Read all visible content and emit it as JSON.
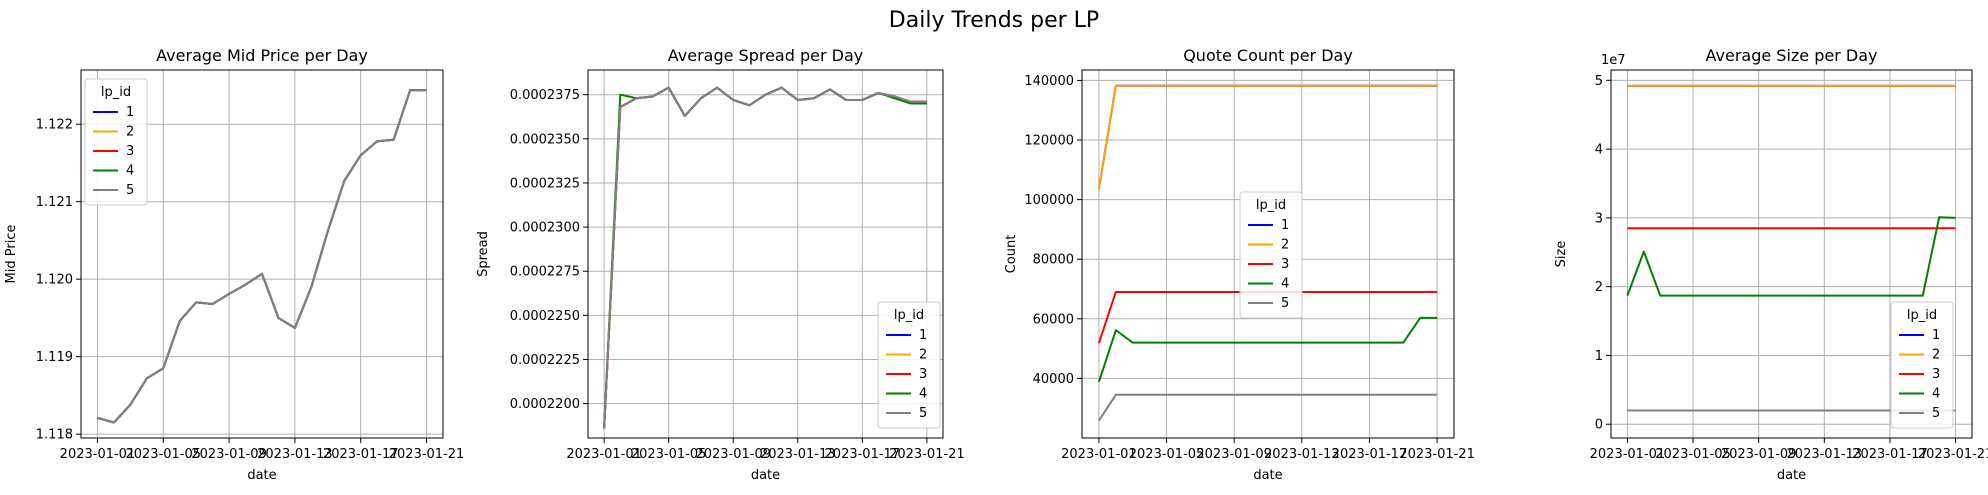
{
  "figure_title": "Daily Trends per LP",
  "series_colors": {
    "1": "#0000ff",
    "2": "#ffa500",
    "3": "#ff0000",
    "4": "#008000",
    "5": "#808080"
  },
  "chart_data": [
    {
      "type": "line",
      "title": "Average Mid Price per Day",
      "xlabel": "date",
      "ylabel": "Mid Price",
      "x": [
        "2023-01-01",
        "2023-01-02",
        "2023-01-03",
        "2023-01-04",
        "2023-01-05",
        "2023-01-06",
        "2023-01-07",
        "2023-01-08",
        "2023-01-09",
        "2023-01-10",
        "2023-01-11",
        "2023-01-12",
        "2023-01-13",
        "2023-01-14",
        "2023-01-15",
        "2023-01-16",
        "2023-01-17",
        "2023-01-18",
        "2023-01-19",
        "2023-01-20",
        "2023-01-21"
      ],
      "xlim": [
        "2022-12-31",
        "2023-01-22"
      ],
      "xticks": [
        "2023-01-01",
        "2023-01-05",
        "2023-01-09",
        "2023-01-13",
        "2023-01-17",
        "2023-01-21"
      ],
      "ylim": [
        1.11795,
        1.1227
      ],
      "yticks": [
        1.118,
        1.119,
        1.12,
        1.121,
        1.122
      ],
      "ytick_labels": [
        "1.118",
        "1.119",
        "1.120",
        "1.121",
        "1.122"
      ],
      "grid": true,
      "legend": {
        "title": "lp_id",
        "placement": "upper-left",
        "entries": [
          "1",
          "2",
          "3",
          "4",
          "5"
        ]
      },
      "series": [
        {
          "name": "1",
          "values": [
            1.11821,
            1.11815,
            1.11838,
            1.11872,
            1.11885,
            1.11946,
            1.1197,
            1.11968,
            1.11981,
            1.11993,
            1.12007,
            1.1195,
            1.11937,
            1.1199,
            1.12062,
            1.12127,
            1.1216,
            1.12178,
            1.1218,
            1.12244,
            1.12244
          ]
        },
        {
          "name": "2",
          "values": [
            1.11821,
            1.11815,
            1.11838,
            1.11872,
            1.11885,
            1.11946,
            1.1197,
            1.11968,
            1.11981,
            1.11993,
            1.12007,
            1.1195,
            1.11937,
            1.1199,
            1.12062,
            1.12127,
            1.1216,
            1.12178,
            1.1218,
            1.12244,
            1.12244
          ]
        },
        {
          "name": "3",
          "values": [
            1.11821,
            1.11815,
            1.11838,
            1.11872,
            1.11885,
            1.11946,
            1.1197,
            1.11968,
            1.11981,
            1.11993,
            1.12007,
            1.1195,
            1.11937,
            1.1199,
            1.12062,
            1.12127,
            1.1216,
            1.12178,
            1.1218,
            1.12244,
            1.12244
          ]
        },
        {
          "name": "4",
          "values": [
            1.11821,
            1.11815,
            1.11838,
            1.11872,
            1.11885,
            1.11946,
            1.1197,
            1.11968,
            1.11981,
            1.11993,
            1.12007,
            1.1195,
            1.11937,
            1.1199,
            1.12062,
            1.12127,
            1.1216,
            1.12178,
            1.1218,
            1.12244,
            1.12244
          ]
        },
        {
          "name": "5",
          "values": [
            1.11821,
            1.11815,
            1.11838,
            1.11872,
            1.11885,
            1.11946,
            1.1197,
            1.11968,
            1.11981,
            1.11993,
            1.12007,
            1.1195,
            1.11937,
            1.1199,
            1.12062,
            1.12127,
            1.1216,
            1.12178,
            1.1218,
            1.12244,
            1.12244
          ]
        }
      ]
    },
    {
      "type": "line",
      "title": "Average Spread per Day",
      "xlabel": "date",
      "ylabel": "Spread",
      "x": [
        "2023-01-01",
        "2023-01-02",
        "2023-01-03",
        "2023-01-04",
        "2023-01-05",
        "2023-01-06",
        "2023-01-07",
        "2023-01-08",
        "2023-01-09",
        "2023-01-10",
        "2023-01-11",
        "2023-01-12",
        "2023-01-13",
        "2023-01-14",
        "2023-01-15",
        "2023-01-16",
        "2023-01-17",
        "2023-01-18",
        "2023-01-19",
        "2023-01-20",
        "2023-01-21"
      ],
      "xlim": [
        "2022-12-31",
        "2023-01-22"
      ],
      "xticks": [
        "2023-01-01",
        "2023-01-05",
        "2023-01-09",
        "2023-01-13",
        "2023-01-17",
        "2023-01-21"
      ],
      "ylim": [
        0.00021805,
        0.0002389
      ],
      "yticks": [
        0.00022,
        0.0002225,
        0.000225,
        0.0002275,
        0.00023,
        0.0002325,
        0.000235,
        0.0002375
      ],
      "ytick_labels": [
        "0.0002200",
        "0.0002225",
        "0.0002250",
        "0.0002275",
        "0.0002300",
        "0.0002325",
        "0.0002350",
        "0.0002375"
      ],
      "grid": true,
      "legend": {
        "title": "lp_id",
        "placement": "lower-right",
        "entries": [
          "1",
          "2",
          "3",
          "4",
          "5"
        ]
      },
      "series": [
        {
          "name": "1",
          "values": [
            0.0002186,
            0.0002368,
            0.0002373,
            0.0002374,
            0.0002379,
            0.0002363,
            0.0002373,
            0.0002379,
            0.0002372,
            0.0002369,
            0.0002375,
            0.0002379,
            0.0002372,
            0.0002373,
            0.0002378,
            0.0002372,
            0.0002372,
            0.0002376,
            0.0002374,
            0.0002371,
            0.0002371
          ]
        },
        {
          "name": "2",
          "values": [
            0.0002186,
            0.0002368,
            0.0002373,
            0.0002374,
            0.0002379,
            0.0002363,
            0.0002373,
            0.0002379,
            0.0002372,
            0.0002369,
            0.0002375,
            0.0002379,
            0.0002372,
            0.0002373,
            0.0002378,
            0.0002372,
            0.0002372,
            0.0002376,
            0.0002374,
            0.0002371,
            0.0002371
          ]
        },
        {
          "name": "3",
          "values": [
            0.0002186,
            0.0002368,
            0.0002373,
            0.0002374,
            0.0002379,
            0.0002363,
            0.0002373,
            0.0002379,
            0.0002372,
            0.0002369,
            0.0002375,
            0.0002379,
            0.0002372,
            0.0002373,
            0.0002378,
            0.0002372,
            0.0002372,
            0.0002376,
            0.0002374,
            0.0002371,
            0.0002371
          ]
        },
        {
          "name": "4",
          "values": [
            0.0002186,
            0.0002375,
            0.0002373,
            0.0002374,
            0.0002379,
            0.0002363,
            0.0002373,
            0.0002379,
            0.0002372,
            0.0002369,
            0.0002375,
            0.0002379,
            0.0002372,
            0.0002373,
            0.0002378,
            0.0002372,
            0.0002372,
            0.0002376,
            0.0002373,
            0.000237,
            0.000237
          ]
        },
        {
          "name": "5",
          "values": [
            0.0002186,
            0.0002368,
            0.0002373,
            0.0002374,
            0.0002379,
            0.0002363,
            0.0002373,
            0.0002379,
            0.0002372,
            0.0002369,
            0.0002375,
            0.0002379,
            0.0002372,
            0.0002373,
            0.0002378,
            0.0002372,
            0.0002372,
            0.0002376,
            0.0002374,
            0.0002371,
            0.0002371
          ]
        }
      ]
    },
    {
      "type": "line",
      "title": "Quote Count per Day",
      "xlabel": "date",
      "ylabel": "Count",
      "x": [
        "2023-01-01",
        "2023-01-02",
        "2023-01-03",
        "2023-01-04",
        "2023-01-05",
        "2023-01-06",
        "2023-01-07",
        "2023-01-08",
        "2023-01-09",
        "2023-01-10",
        "2023-01-11",
        "2023-01-12",
        "2023-01-13",
        "2023-01-14",
        "2023-01-15",
        "2023-01-16",
        "2023-01-17",
        "2023-01-18",
        "2023-01-19",
        "2023-01-20",
        "2023-01-21"
      ],
      "xlim": [
        "2022-12-31",
        "2023-01-22"
      ],
      "xticks": [
        "2023-01-01",
        "2023-01-05",
        "2023-01-09",
        "2023-01-13",
        "2023-01-17",
        "2023-01-21"
      ],
      "ylim": [
        20000,
        143500
      ],
      "yticks": [
        40000,
        60000,
        80000,
        100000,
        120000,
        140000
      ],
      "ytick_labels": [
        "40000",
        "60000",
        "80000",
        "100000",
        "120000",
        "140000"
      ],
      "grid": true,
      "legend": {
        "title": "lp_id",
        "placement": "center",
        "entries": [
          "1",
          "2",
          "3",
          "4",
          "5"
        ]
      },
      "series": [
        {
          "name": "1",
          "values": [
            103500,
            138200,
            138200,
            138200,
            138200,
            138200,
            138200,
            138200,
            138200,
            138200,
            138200,
            138200,
            138200,
            138200,
            138200,
            138200,
            138200,
            138200,
            138200,
            138200,
            138200
          ]
        },
        {
          "name": "2",
          "values": [
            103500,
            138200,
            138200,
            138200,
            138200,
            138200,
            138200,
            138200,
            138200,
            138200,
            138200,
            138200,
            138200,
            138200,
            138200,
            138200,
            138200,
            138200,
            138200,
            138200,
            138200
          ]
        },
        {
          "name": "3",
          "values": [
            51800,
            69000,
            69000,
            69000,
            69000,
            69000,
            69000,
            69000,
            69000,
            69000,
            69000,
            69000,
            69000,
            69000,
            69000,
            69000,
            69000,
            69000,
            69000,
            69000,
            69000
          ]
        },
        {
          "name": "4",
          "values": [
            38800,
            56200,
            52000,
            52000,
            52000,
            52000,
            52000,
            52000,
            52000,
            52000,
            52000,
            52000,
            52000,
            52000,
            52000,
            52000,
            52000,
            52000,
            52000,
            60300,
            60300
          ]
        },
        {
          "name": "5",
          "values": [
            25800,
            34500,
            34500,
            34500,
            34500,
            34500,
            34500,
            34500,
            34500,
            34500,
            34500,
            34500,
            34500,
            34500,
            34500,
            34500,
            34500,
            34500,
            34500,
            34500,
            34500
          ]
        }
      ]
    },
    {
      "type": "line",
      "title": "Average Size per Day",
      "xlabel": "date",
      "ylabel": "Size",
      "y_offset_label": "1e7",
      "x": [
        "2023-01-01",
        "2023-01-02",
        "2023-01-03",
        "2023-01-04",
        "2023-01-05",
        "2023-01-06",
        "2023-01-07",
        "2023-01-08",
        "2023-01-09",
        "2023-01-10",
        "2023-01-11",
        "2023-01-12",
        "2023-01-13",
        "2023-01-14",
        "2023-01-15",
        "2023-01-16",
        "2023-01-17",
        "2023-01-18",
        "2023-01-19",
        "2023-01-20",
        "2023-01-21"
      ],
      "xlim": [
        "2022-12-31",
        "2023-01-22"
      ],
      "xticks": [
        "2023-01-01",
        "2023-01-05",
        "2023-01-09",
        "2023-01-13",
        "2023-01-17",
        "2023-01-21"
      ],
      "ylim": [
        -2000000,
        51500000
      ],
      "yticks": [
        0,
        10000000,
        20000000,
        30000000,
        40000000,
        50000000
      ],
      "ytick_labels": [
        "0",
        "1",
        "2",
        "3",
        "4",
        "5"
      ],
      "grid": true,
      "legend": {
        "title": "lp_id",
        "placement": "lower-right",
        "entries": [
          "1",
          "2",
          "3",
          "4",
          "5"
        ]
      },
      "series": [
        {
          "name": "1",
          "values": [
            49200000,
            49200000,
            49200000,
            49200000,
            49200000,
            49200000,
            49200000,
            49200000,
            49200000,
            49200000,
            49200000,
            49200000,
            49200000,
            49200000,
            49200000,
            49200000,
            49200000,
            49200000,
            49200000,
            49200000,
            49200000
          ]
        },
        {
          "name": "2",
          "values": [
            49200000,
            49200000,
            49200000,
            49200000,
            49200000,
            49200000,
            49200000,
            49200000,
            49200000,
            49200000,
            49200000,
            49200000,
            49200000,
            49200000,
            49200000,
            49200000,
            49200000,
            49200000,
            49200000,
            49200000,
            49200000
          ]
        },
        {
          "name": "3",
          "values": [
            28500000,
            28500000,
            28500000,
            28500000,
            28500000,
            28500000,
            28500000,
            28500000,
            28500000,
            28500000,
            28500000,
            28500000,
            28500000,
            28500000,
            28500000,
            28500000,
            28500000,
            28500000,
            28500000,
            28500000,
            28500000
          ]
        },
        {
          "name": "4",
          "values": [
            18700000,
            25100000,
            18700000,
            18700000,
            18700000,
            18700000,
            18700000,
            18700000,
            18700000,
            18700000,
            18700000,
            18700000,
            18700000,
            18700000,
            18700000,
            18700000,
            18700000,
            18700000,
            18700000,
            30100000,
            30000000
          ]
        },
        {
          "name": "5",
          "values": [
            2000000,
            2000000,
            2000000,
            2000000,
            2000000,
            2000000,
            2000000,
            2000000,
            2000000,
            2000000,
            2000000,
            2000000,
            2000000,
            2000000,
            2000000,
            2000000,
            2000000,
            2000000,
            2000000,
            2000000,
            2000000
          ]
        }
      ]
    }
  ]
}
